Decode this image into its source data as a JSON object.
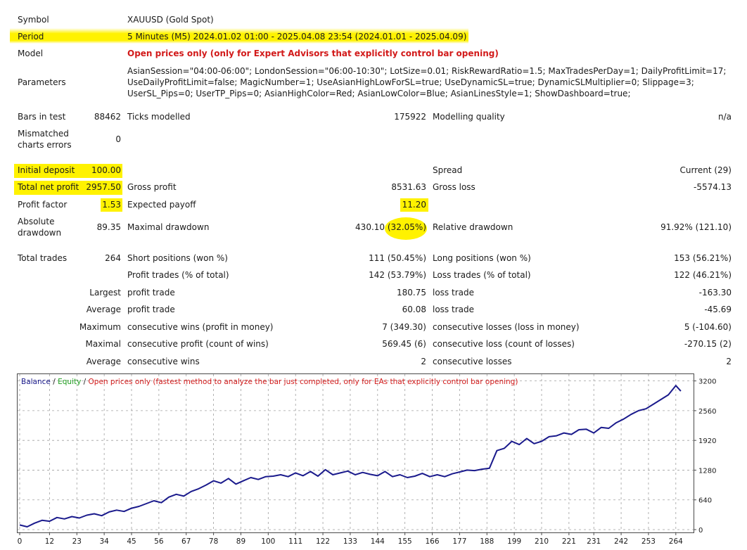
{
  "report": {
    "symbol_label": "Symbol",
    "symbol_value": "XAUUSD (Gold Spot)",
    "period_label": "Period",
    "period_value": "5 Minutes (M5) 2024.01.02 01:00 - 2025.04.08 23:54 (2024.01.01 - 2025.04.09)",
    "model_label": "Model",
    "model_value": "Open prices only (only for Expert Advisors that explicitly control bar opening)",
    "parameters_label": "Parameters",
    "parameters_lines": [
      "AsianSession=\"04:00-06:00\"; LondonSession=\"06:00-10:30\"; LotSize=0.01; RiskRewardRatio=1.5; MaxTradesPerDay=1; DailyProfitLimit=17;",
      "UseDailyProfitLimit=false; MagicNumber=1; UseAsianHighLowForSL=true; UseDynamicSL=true; DynamicSLMultiplier=0; Slippage=3;",
      "UserSL_Pips=0; UserTP_Pips=0; AsianHighColor=Red; AsianLowColor=Blue; AsianLinesStyle=1; ShowDashboard=true;"
    ],
    "bars_label": "Bars in test",
    "bars_value": "88462",
    "ticks_label": "Ticks modelled",
    "ticks_value": "175922",
    "quality_label": "Modelling quality",
    "quality_value": "n/a",
    "mismatch_label_1": "Mismatched",
    "mismatch_label_2": "charts errors",
    "mismatch_value": "0",
    "deposit_label": "Initial deposit",
    "deposit_value": "100.00",
    "spread_label": "Spread",
    "spread_value": "Current (29)",
    "net_label": "Total net profit",
    "net_value": "2957.50",
    "gross_profit_label": "Gross profit",
    "gross_profit_value": "8531.63",
    "gross_loss_label": "Gross loss",
    "gross_loss_value": "-5574.13",
    "pf_label": "Profit factor",
    "pf_value": "1.53",
    "payoff_label": "Expected payoff",
    "payoff_value": "11.20",
    "abs_dd_label_1": "Absolute",
    "abs_dd_label_2": "drawdown",
    "abs_dd_value": "89.35",
    "max_dd_label": "Maximal drawdown",
    "max_dd_value_a": "430.10",
    "max_dd_value_b": "(32.05%)",
    "rel_dd_label": "Relative drawdown",
    "rel_dd_value": "91.92% (121.10)",
    "total_trades_label": "Total trades",
    "total_trades_value": "264",
    "short_label": "Short positions (won %)",
    "short_value": "111 (50.45%)",
    "long_label": "Long positions (won %)",
    "long_value": "153 (56.21%)",
    "profit_trades_label": "Profit trades (% of total)",
    "profit_trades_value": "142 (53.79%)",
    "loss_trades_label": "Loss trades (% of total)",
    "loss_trades_value": "122 (46.21%)",
    "largest_label": "Largest",
    "largest_profit_label": "profit trade",
    "largest_profit_value": "180.75",
    "largest_loss_label": "loss trade",
    "largest_loss_value": "-163.30",
    "average_label": "Average",
    "average_profit_label": "profit trade",
    "average_profit_value": "60.08",
    "average_loss_label": "loss trade",
    "average_loss_value": "-45.69",
    "maximum_label": "Maximum",
    "max_cons_wins_label": "consecutive wins (profit in money)",
    "max_cons_wins_value": "7 (349.30)",
    "max_cons_losses_label": "consecutive losses (loss in money)",
    "max_cons_losses_value": "5 (-104.60)",
    "maximal_label": "Maximal",
    "maximal_profit_label": "consecutive profit (count of wins)",
    "maximal_profit_value": "569.45 (6)",
    "maximal_loss_label": "consecutive loss (count of losses)",
    "maximal_loss_value": "-270.15 (2)",
    "avg_label2": "Average",
    "avg_cons_wins_label": "consecutive wins",
    "avg_cons_wins_value": "2",
    "avg_cons_losses_label": "consecutive losses",
    "avg_cons_losses_value": "2"
  },
  "chart_legend": {
    "balance": "Balance",
    "sep1": " / ",
    "equity": "Equity",
    "sep2": " / ",
    "model": "Open prices only (fastest method to analyze the bar just completed, only for EAs that explicitly control bar opening)"
  },
  "colors": {
    "balance": "#1a1a8c",
    "equity": "#1e9e1e",
    "model": "#d21a1a",
    "highlight": "#fff200",
    "grid": "#a0a0a0"
  },
  "chart_data": {
    "type": "line",
    "title": "",
    "xlabel": "",
    "ylabel": "",
    "xlim": [
      0,
      270
    ],
    "ylim": [
      0,
      3300
    ],
    "x_ticks": [
      0,
      12,
      23,
      34,
      45,
      56,
      67,
      78,
      89,
      100,
      111,
      122,
      133,
      144,
      155,
      166,
      177,
      188,
      199,
      210,
      221,
      231,
      242,
      253,
      264
    ],
    "y_ticks": [
      0,
      640,
      1280,
      1920,
      2560,
      3200
    ],
    "grid": true,
    "legend": "top-left",
    "series": [
      {
        "name": "Balance",
        "x": [
          0,
          3,
          6,
          9,
          12,
          15,
          18,
          21,
          24,
          27,
          30,
          33,
          36,
          39,
          42,
          45,
          48,
          51,
          54,
          57,
          60,
          63,
          66,
          69,
          72,
          75,
          78,
          81,
          84,
          87,
          90,
          93,
          96,
          99,
          102,
          105,
          108,
          111,
          114,
          117,
          120,
          123,
          126,
          129,
          132,
          135,
          138,
          141,
          144,
          147,
          150,
          153,
          156,
          159,
          162,
          165,
          168,
          171,
          174,
          177,
          180,
          183,
          186,
          189,
          192,
          195,
          198,
          201,
          204,
          207,
          210,
          213,
          216,
          219,
          222,
          225,
          228,
          231,
          234,
          237,
          240,
          243,
          246,
          249,
          252,
          255,
          258,
          261,
          264,
          266
        ],
        "values": [
          100,
          60,
          140,
          200,
          180,
          260,
          230,
          280,
          250,
          310,
          340,
          300,
          380,
          420,
          390,
          460,
          500,
          560,
          620,
          580,
          700,
          760,
          720,
          820,
          880,
          960,
          1050,
          1000,
          1100,
          980,
          1050,
          1120,
          1080,
          1140,
          1150,
          1180,
          1140,
          1220,
          1160,
          1250,
          1150,
          1290,
          1180,
          1220,
          1260,
          1180,
          1230,
          1190,
          1160,
          1250,
          1140,
          1180,
          1120,
          1150,
          1210,
          1140,
          1180,
          1140,
          1200,
          1240,
          1280,
          1270,
          1300,
          1320,
          1700,
          1750,
          1900,
          1830,
          1960,
          1850,
          1900,
          2000,
          2020,
          2080,
          2050,
          2150,
          2160,
          2080,
          2200,
          2180,
          2300,
          2380,
          2480,
          2560,
          2600,
          2700,
          2800,
          2900,
          3100,
          2980
        ]
      }
    ]
  }
}
